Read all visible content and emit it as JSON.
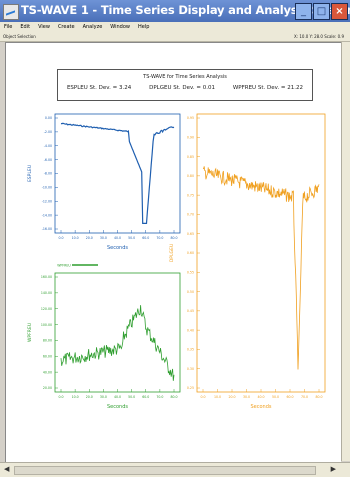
{
  "app": {
    "title": "TS-WAVE 1 - Time Series Display and Analysis System",
    "buttons": {
      "minimize": "_",
      "maximize": "□",
      "close": "×"
    }
  },
  "menu": [
    "File",
    "Edit",
    "View",
    "Create",
    "Analyze",
    "Window",
    "Help"
  ],
  "status": {
    "left": "Object Selection",
    "right": "X: 10.0  Y: 28.0  Scale: 0.9"
  },
  "info": {
    "title": "TS-WAVE for Time Series Analysis",
    "stats": [
      "ESPLEU St. Dev. = 3.24",
      "DPLGEU St. Dev. = 0.01",
      "WPFREU St. Dev. = 21.22"
    ]
  },
  "colors": {
    "blue": "#1f5fb0",
    "green": "#2f9e2f",
    "orange": "#f0a020"
  },
  "chart_data": [
    {
      "type": "line",
      "series": [
        {
          "name": "ESPLEU",
          "color": "#1f5fb0"
        }
      ],
      "xlabel": "Seconds",
      "ylabel": "ESPLEU",
      "xlim": [
        0,
        80
      ],
      "ylim": [
        -17,
        1
      ],
      "xticks": [
        "0.0",
        "10.0",
        "20.0",
        "30.0",
        "40.0",
        "50.0",
        "60.0",
        "70.0",
        "80.0"
      ],
      "yticks": [
        "0.00",
        "-2.00",
        "-4.00",
        "-6.00",
        "-8.00",
        "-10.00",
        "-12.00",
        "-14.00",
        "-16.00"
      ]
    },
    {
      "type": "line",
      "series": [
        {
          "name": "WPFREU",
          "color": "#2f9e2f"
        }
      ],
      "xlabel": "Seconds",
      "ylabel": "WPFREU",
      "xlim": [
        0,
        80
      ],
      "ylim": [
        0,
        160
      ],
      "xticks": [
        "0.0",
        "10.0",
        "20.0",
        "30.0",
        "40.0",
        "50.0",
        "60.0",
        "70.0",
        "80.0"
      ],
      "yticks": [
        "160.00",
        "140.00",
        "120.00",
        "100.00",
        "80.00",
        "60.00",
        "40.00",
        "20.00"
      ]
    },
    {
      "type": "line",
      "series": [
        {
          "name": "DPLGEU",
          "color": "#f0a020"
        }
      ],
      "xlabel": "Seconds",
      "ylabel": "DPLGEU",
      "xlim": [
        0,
        80
      ],
      "ylim": [
        0.2,
        1.0
      ],
      "xticks": [
        "0.0",
        "10.0",
        "20.0",
        "30.0",
        "40.0",
        "50.0",
        "60.0",
        "70.0",
        "80.0"
      ],
      "yticks": [
        "0.95",
        "0.90",
        "0.85",
        "0.80",
        "0.75",
        "0.70",
        "0.65",
        "0.60",
        "0.55",
        "0.50",
        "0.45",
        "0.40",
        "0.35",
        "0.30",
        "0.25"
      ]
    }
  ]
}
